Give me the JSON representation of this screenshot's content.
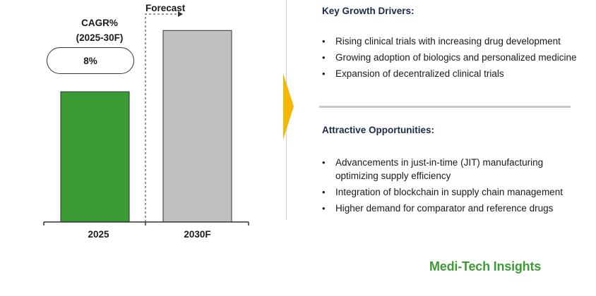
{
  "chart_data": {
    "type": "bar",
    "categories": [
      "2025",
      "2030F"
    ],
    "values": [
      1.0,
      1.47
    ],
    "colors": [
      "#3a9a34",
      "#c0c0c0"
    ],
    "bar_outline": "#333333",
    "ylim": [
      0,
      1.65
    ],
    "title": "",
    "xlabel": "",
    "ylabel": "",
    "forecast_label": "Forecast",
    "forecast_starts_at": "2030F"
  },
  "cagr": {
    "title_line1": "CAGR%",
    "title_line2": "(2025-30F)",
    "value": "8%"
  },
  "growth_drivers": {
    "heading": "Key Growth Drivers:",
    "items": [
      "Rising clinical trials with increasing drug development",
      "Growing adoption of biologics and personalized medicine",
      "Expansion of decentralized clinical trials"
    ]
  },
  "opportunities": {
    "heading": "Attractive Opportunities:",
    "items": [
      "Advancements in just-in-time (JIT) manufacturing optimizing supply efficiency",
      "Integration of blockchain in supply chain management",
      "Higher demand for comparator and reference drugs"
    ]
  },
  "bullet_glyph": "•",
  "brand": {
    "name": "Medi-Tech Insights",
    "color": "#3d9b35"
  },
  "accent_color": "#f5b800"
}
